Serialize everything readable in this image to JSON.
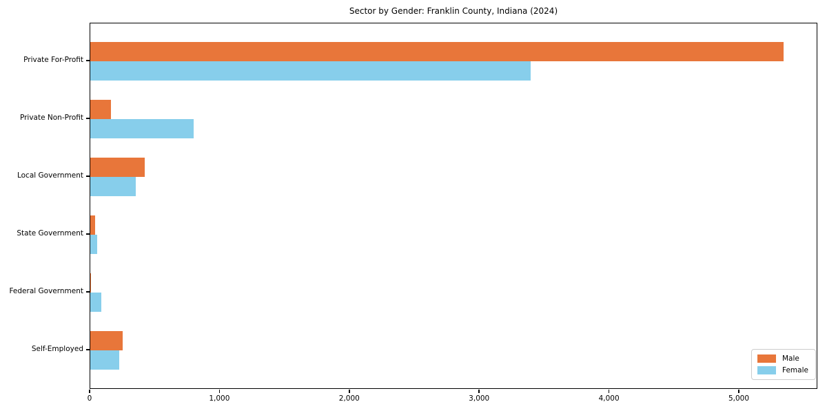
{
  "chart_data": {
    "type": "bar",
    "orientation": "horizontal",
    "title": "Sector by Gender: Franklin County, Indiana (2024)",
    "categories": [
      "Private For-Profit",
      "Private Non-Profit",
      "Local Government",
      "State Government",
      "Federal Government",
      "Self-Employed"
    ],
    "series": [
      {
        "name": "Male",
        "color": "#e8763a",
        "values": [
          5340,
          160,
          420,
          35,
          5,
          250
        ]
      },
      {
        "name": "Female",
        "color": "#87ceeb",
        "values": [
          3390,
          795,
          350,
          55,
          85,
          225
        ]
      }
    ],
    "xlabel": "",
    "ylabel": "",
    "xlim": [
      0,
      5605
    ],
    "x_ticks": [
      0,
      1000,
      2000,
      3000,
      4000,
      5000
    ],
    "x_tick_labels": [
      "0",
      "1,000",
      "2,000",
      "3,000",
      "4,000",
      "5,000"
    ],
    "grid": false,
    "legend_position": "lower right"
  }
}
